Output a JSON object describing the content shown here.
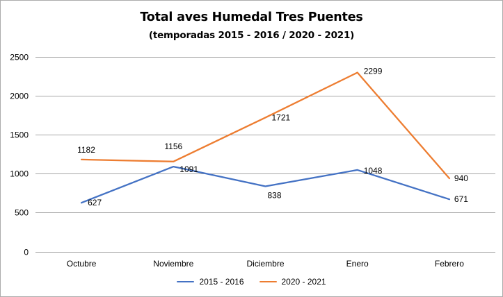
{
  "chart_data": {
    "type": "line",
    "title": "Total aves Humedal Tres Puentes",
    "subtitle": "(temporadas 2015 - 2016 / 2020 - 2021)",
    "categories": [
      "Octubre",
      "Noviembre",
      "Diciembre",
      "Enero",
      "Febrero"
    ],
    "series": [
      {
        "name": "2015 - 2016",
        "color": "#4472C4",
        "values": [
          627,
          1091,
          838,
          1048,
          671
        ]
      },
      {
        "name": "2020 - 2021",
        "color": "#ED7D31",
        "values": [
          1182,
          1156,
          1721,
          2299,
          940
        ]
      }
    ],
    "ylim": [
      0,
      2500
    ],
    "yticks": [
      0,
      500,
      1000,
      1500,
      2000,
      2500
    ],
    "grid": true,
    "grid_color": "#A6A6A6",
    "data_labels": true,
    "legend_position": "bottom"
  }
}
